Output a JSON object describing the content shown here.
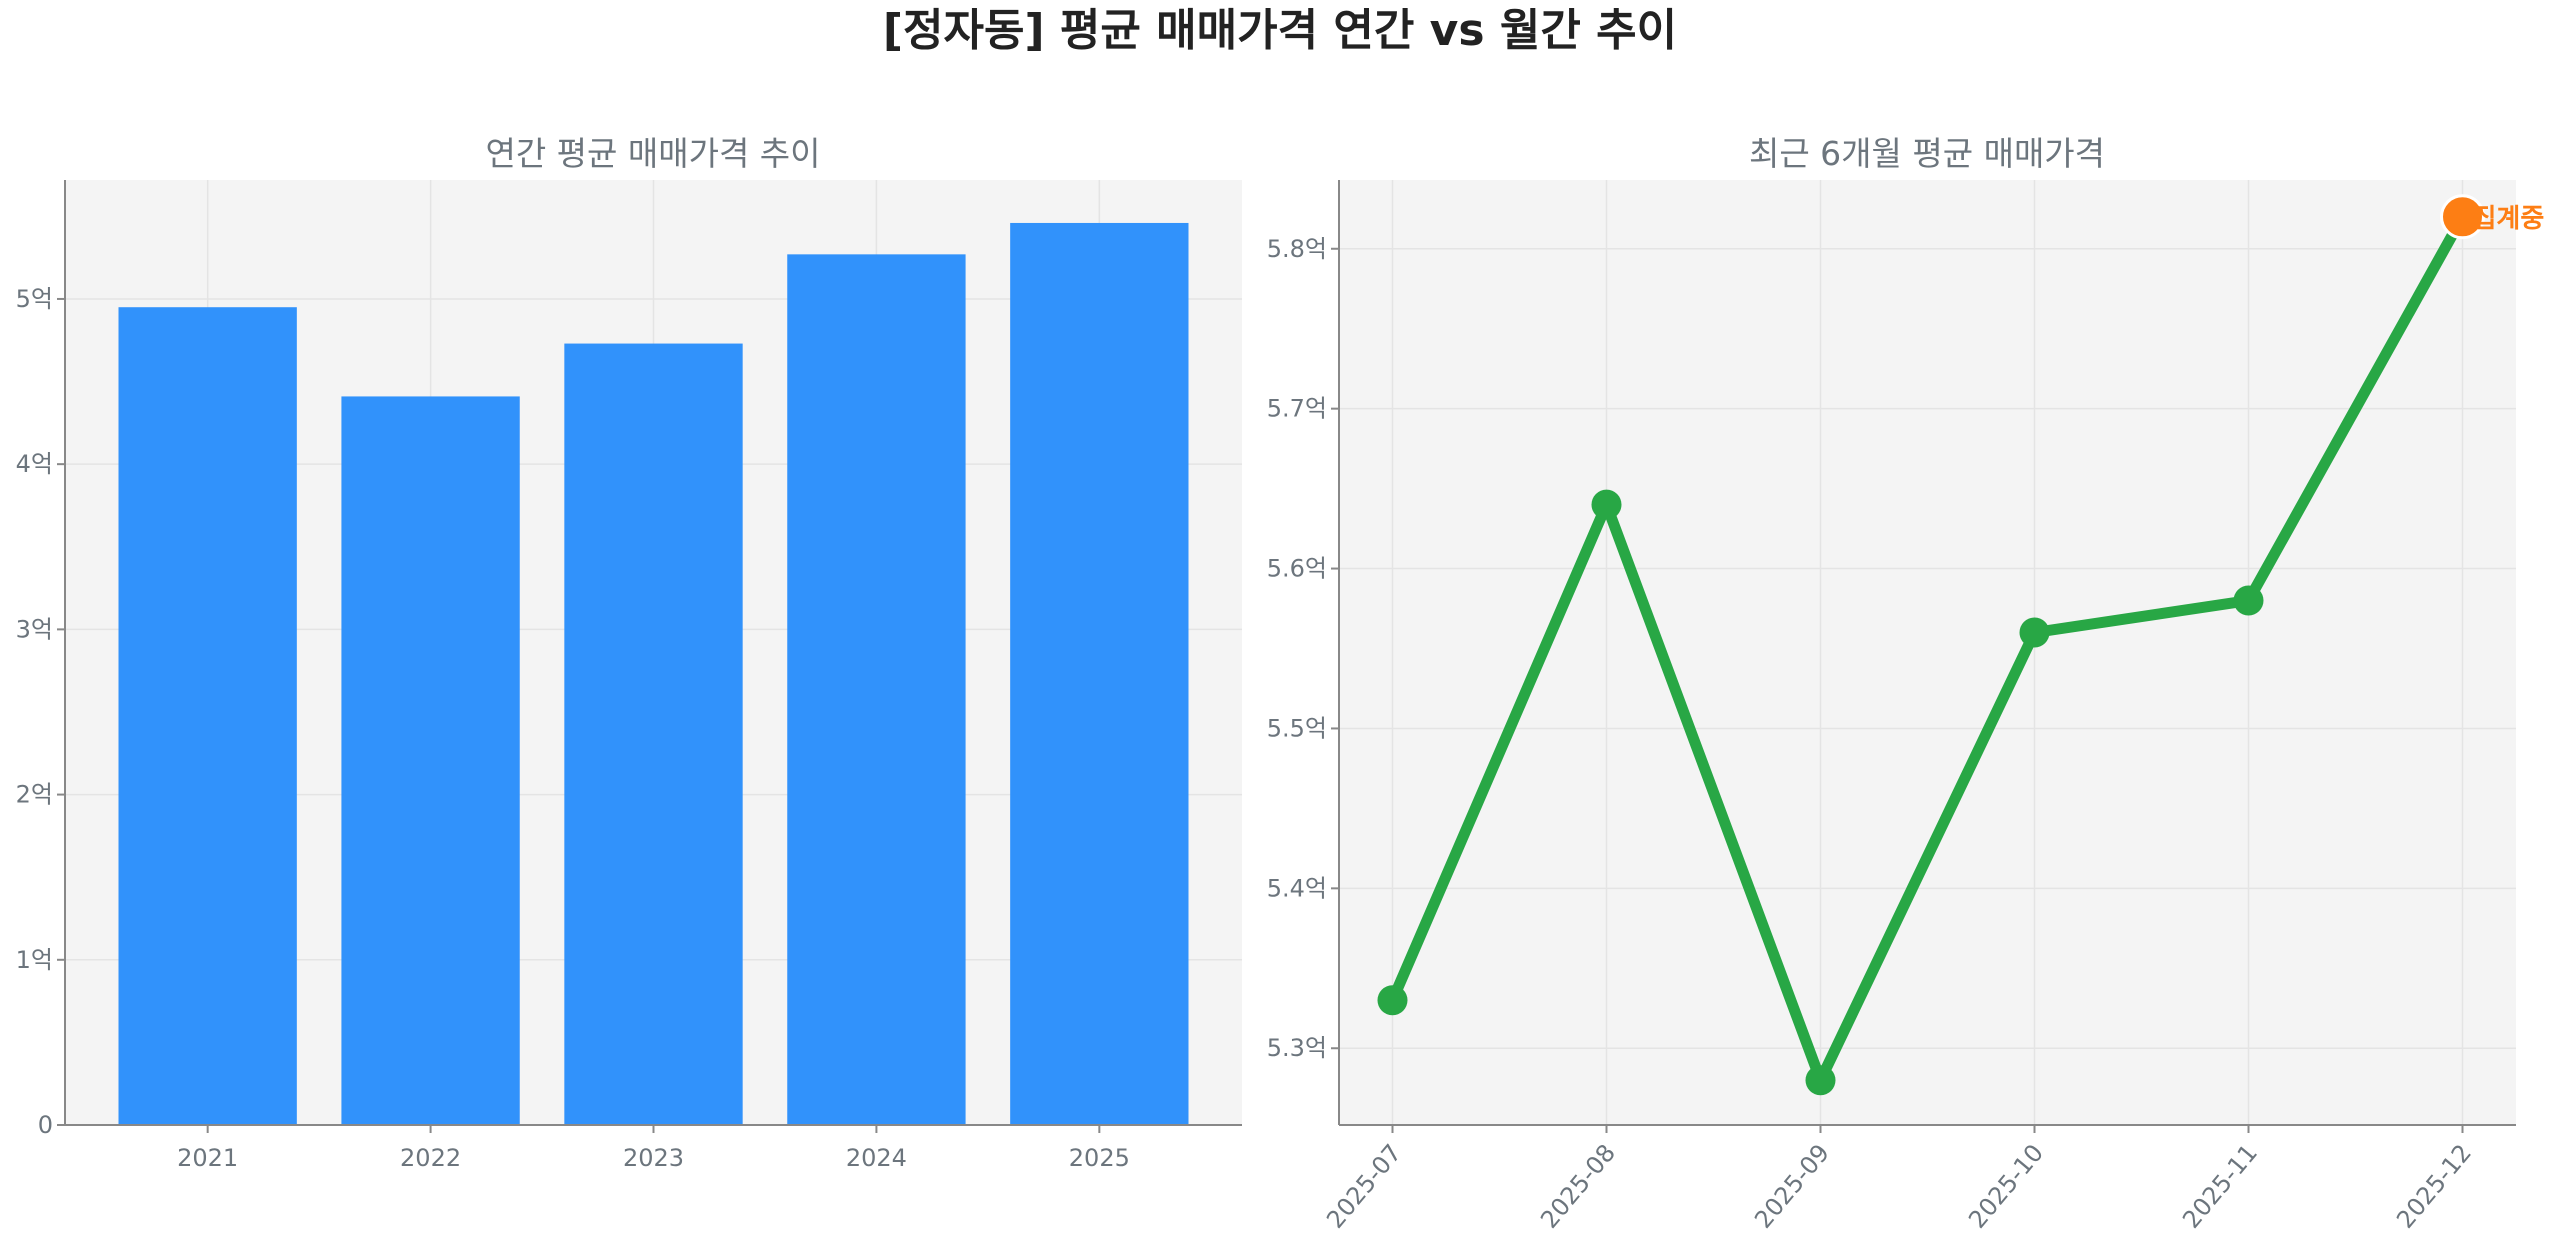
{
  "title": "[정자동] 평균 매매가격 연간 vs 월간 추이",
  "colors": {
    "bar": "#3192fb",
    "line": "#28a745",
    "highlight": "#fd7e14",
    "plot_bg": "#f4f4f4"
  },
  "chart_data": [
    {
      "type": "bar",
      "title": "연간 평균 매매가격 추이",
      "categories": [
        "2021",
        "2022",
        "2023",
        "2024",
        "2025"
      ],
      "values": [
        4.95,
        4.41,
        4.73,
        5.27,
        5.46
      ],
      "unit": "억",
      "yticks": [
        0,
        1,
        2,
        3,
        4,
        5
      ],
      "ytick_labels": [
        "0",
        "1억",
        "2억",
        "3억",
        "4억",
        "5억"
      ],
      "ylim": [
        0,
        5.72
      ],
      "grid": true
    },
    {
      "type": "line",
      "title": "최근 6개월 평균 매매가격",
      "categories": [
        "2025-07",
        "2025-08",
        "2025-09",
        "2025-10",
        "2025-11",
        "2025-12"
      ],
      "values": [
        5.33,
        5.64,
        5.28,
        5.56,
        5.58,
        5.82
      ],
      "unit": "억",
      "yticks": [
        5.3,
        5.4,
        5.5,
        5.6,
        5.7,
        5.8
      ],
      "ytick_labels": [
        "5.3억",
        "5.4억",
        "5.5억",
        "5.6억",
        "5.7억",
        "5.8억"
      ],
      "ylim": [
        5.252,
        5.843
      ],
      "grid": true,
      "annotation": {
        "category": "2025-12",
        "text": "집계중"
      }
    }
  ]
}
